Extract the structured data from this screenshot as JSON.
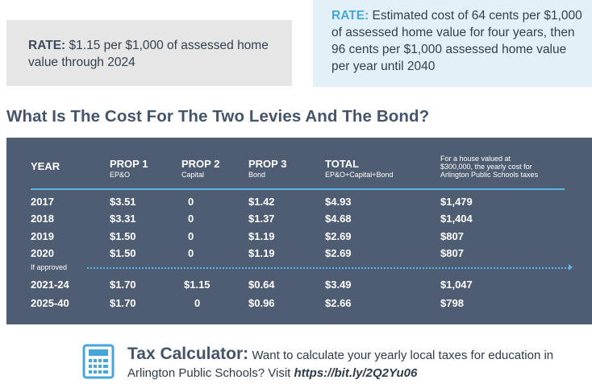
{
  "rates": {
    "left": {
      "label": "RATE:",
      "text": " $1.15 per $1,000 of assessed home value through 2024"
    },
    "right": {
      "label": "RATE:",
      "text": " Estimated cost of 64 cents per $1,000 of assessed home value for four years, then 96 cents per $1,000 assessed home value per year until 2040"
    }
  },
  "section_title": "What Is The Cost For The Two Levies And The Bond?",
  "table": {
    "headers": {
      "year": "YEAR",
      "prop1": "PROP 1",
      "prop1_sub": "EP&O",
      "prop2": "PROP 2",
      "prop2_sub": "Capital",
      "prop3": "PROP 3",
      "prop3_sub": "Bond",
      "total": "TOTAL",
      "total_sub": "EP&O+Capital+Bond",
      "house_note": [
        "For a house valued at",
        "$300,000, the yearly cost for",
        "Arlington Public Schools taxes"
      ]
    },
    "rows": [
      {
        "year": "2017",
        "prop1": "$3.51",
        "prop2": "0",
        "prop3": "$1.42",
        "total": "$4.93",
        "yearly": "$1,479"
      },
      {
        "year": "2018",
        "prop1": "$3.31",
        "prop2": "0",
        "prop3": "$1.37",
        "total": "$4.68",
        "yearly": "$1,404"
      },
      {
        "year": "2019",
        "prop1": "$1.50",
        "prop2": "0",
        "prop3": "$1.19",
        "total": "$2.69",
        "yearly": "$807"
      },
      {
        "year": "2020",
        "prop1": "$1.50",
        "prop2": "0",
        "prop3": "$1.19",
        "total": "$2.69",
        "yearly": "$807"
      }
    ],
    "if_approved_label": "If approved",
    "approved_rows": [
      {
        "year": "2021-24",
        "prop1": "$1.70",
        "prop2": "$1.15",
        "prop3": "$0.64",
        "total": "$3.49",
        "yearly": "$1,047"
      },
      {
        "year": "2025-40",
        "prop1": "$1.70",
        "prop2": "0",
        "prop3": "$0.96",
        "total": "$2.66",
        "yearly": "$798"
      }
    ]
  },
  "calculator": {
    "icon": "calculator-icon",
    "title": "Tax Calculator:",
    "text": " Want to calculate your yearly local taxes for education in Arlington Public Schools? Visit ",
    "link": "https://bit.ly/2Q2Yu06"
  },
  "colors": {
    "table_bg": "#4f5d73",
    "accent_blue": "#46a6d8",
    "left_box_bg": "#e6e6e7",
    "right_box_bg": "#e3f0f8"
  }
}
